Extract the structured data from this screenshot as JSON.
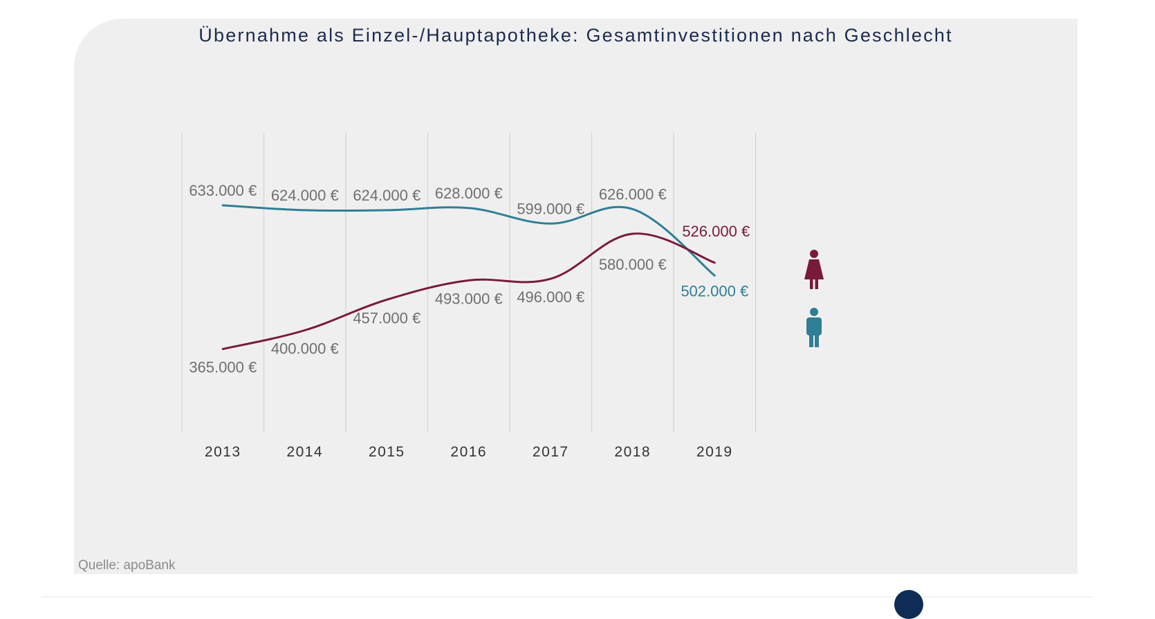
{
  "chart_data": {
    "type": "line",
    "title": "Übernahme als Einzel-/Hauptapotheke: Gesamtinvestitionen nach Geschlecht",
    "categories": [
      "2013",
      "2014",
      "2015",
      "2016",
      "2017",
      "2018",
      "2019"
    ],
    "series": [
      {
        "name": "Männer",
        "icon": "male-icon",
        "color": "#2e7f95",
        "values": [
          633000,
          624000,
          624000,
          628000,
          599000,
          626000,
          502000
        ],
        "labels": [
          "633.000 €",
          "624.000 €",
          "624.000 €",
          "628.000 €",
          "599.000 €",
          "626.000 €",
          "502.000 €"
        ]
      },
      {
        "name": "Frauen",
        "icon": "female-icon",
        "color": "#7a1a3a",
        "values": [
          365000,
          400000,
          457000,
          493000,
          496000,
          580000,
          526000
        ],
        "labels": [
          "365.000 €",
          "400.000 €",
          "457.000 €",
          "493.000 €",
          "496.000 €",
          "580.000 €",
          "526.000 €"
        ]
      }
    ],
    "xlabel": "",
    "ylabel": "",
    "ylim": [
      300000,
      700000
    ],
    "grid": "vertical",
    "legend": "right"
  },
  "label_color": "#6f6f6f",
  "source": "Quelle: apoBank"
}
